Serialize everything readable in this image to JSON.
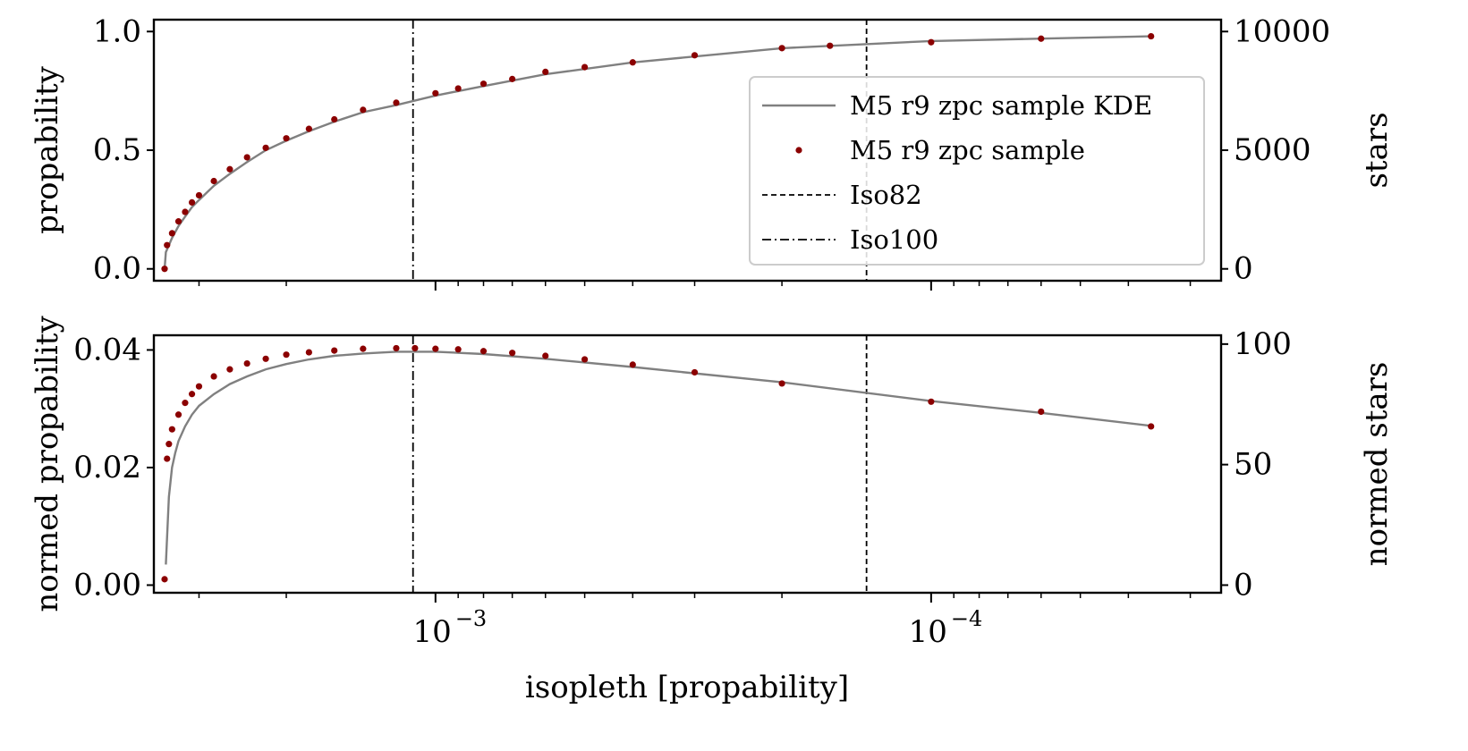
{
  "chart_data": [
    {
      "type": "line",
      "xlabel": "",
      "ylabel": "propability",
      "ylabel_right": "stars",
      "x_scale": "log, inverted",
      "xlim": [
        0.0037,
        2.6e-05
      ],
      "ylim": [
        -0.05,
        1.05
      ],
      "yticks": [
        "0.0",
        "0.5",
        "1.0"
      ],
      "yticks_right": [
        "0",
        "5000",
        "10000"
      ],
      "legend_position": "right",
      "legend": [
        {
          "label": "M5 r9 zpc sample KDE",
          "style": "solid line",
          "color": "#808080"
        },
        {
          "label": "M5 r9 zpc sample",
          "style": "dots",
          "color": "#8b0000"
        },
        {
          "label": "Iso82",
          "style": "dashed line",
          "color": "#000000"
        },
        {
          "label": "Iso100",
          "style": "dash-dot line",
          "color": "#000000"
        }
      ],
      "vlines": [
        {
          "name": "Iso100",
          "x": 0.00111,
          "style": "dashdot"
        },
        {
          "name": "Iso82",
          "x": 0.000135,
          "style": "dashed"
        }
      ],
      "series": [
        {
          "name": "M5 r9 zpc sample KDE",
          "x": [
            0.00352,
            0.0035,
            0.0034,
            0.0033,
            0.0032,
            0.0031,
            0.003,
            0.0028,
            0.0026,
            0.0024,
            0.0022,
            0.002,
            0.0018,
            0.0016,
            0.0014,
            0.0012,
            0.001,
            0.0008,
            0.0006,
            0.0004,
            0.0002,
            0.0001,
            6e-05,
            3.6e-05
          ],
          "y": [
            0.0,
            0.07,
            0.13,
            0.18,
            0.22,
            0.26,
            0.29,
            0.35,
            0.4,
            0.45,
            0.5,
            0.54,
            0.58,
            0.62,
            0.66,
            0.69,
            0.73,
            0.77,
            0.82,
            0.87,
            0.93,
            0.96,
            0.97,
            0.98
          ]
        },
        {
          "name": "M5 r9 zpc sample",
          "x": [
            0.00352,
            0.00348,
            0.0034,
            0.0033,
            0.0032,
            0.0031,
            0.003,
            0.0028,
            0.0026,
            0.0024,
            0.0022,
            0.002,
            0.0018,
            0.0016,
            0.0014,
            0.0012,
            0.001,
            0.0009,
            0.0008,
            0.0007,
            0.0006,
            0.0005,
            0.0004,
            0.0003,
            0.0002,
            0.00016,
            0.0001,
            6e-05,
            3.6e-05
          ],
          "y": [
            0.0,
            0.1,
            0.15,
            0.2,
            0.24,
            0.28,
            0.31,
            0.37,
            0.42,
            0.47,
            0.51,
            0.55,
            0.59,
            0.63,
            0.67,
            0.7,
            0.74,
            0.76,
            0.78,
            0.8,
            0.83,
            0.85,
            0.87,
            0.9,
            0.93,
            0.94,
            0.955,
            0.97,
            0.98
          ]
        }
      ]
    },
    {
      "type": "line",
      "xlabel": "isopleth [propability]",
      "ylabel": "normed propability",
      "ylabel_right": "normed stars",
      "x_scale": "log, inverted",
      "xlim": [
        0.0037,
        2.6e-05
      ],
      "ylim": [
        -0.0013,
        0.0425
      ],
      "xticks": [
        "10",
        "10"
      ],
      "xtick_exponents": [
        "−3",
        "−4"
      ],
      "yticks": [
        "0.00",
        "0.02",
        "0.04"
      ],
      "yticks_right": [
        "0",
        "50",
        "100"
      ],
      "vlines": [
        {
          "name": "Iso100",
          "x": 0.00111,
          "style": "dashdot"
        },
        {
          "name": "Iso82",
          "x": 0.000135,
          "style": "dashed"
        }
      ],
      "series": [
        {
          "name": "M5 r9 zpc sample KDE",
          "x": [
            0.0035,
            0.00345,
            0.0034,
            0.00335,
            0.0033,
            0.0032,
            0.0031,
            0.003,
            0.0028,
            0.0026,
            0.0024,
            0.0022,
            0.002,
            0.0018,
            0.0016,
            0.0014,
            0.0012,
            0.0011,
            0.001,
            0.0008,
            0.0006,
            0.0004,
            0.0002,
            0.0001,
            6e-05,
            3.6e-05
          ],
          "y": [
            0.0035,
            0.015,
            0.02,
            0.0225,
            0.0245,
            0.027,
            0.029,
            0.0305,
            0.0325,
            0.0342,
            0.0355,
            0.0367,
            0.0376,
            0.0384,
            0.039,
            0.0394,
            0.0397,
            0.0397,
            0.0397,
            0.0393,
            0.0385,
            0.0371,
            0.0345,
            0.0313,
            0.0293,
            0.0271
          ]
        },
        {
          "name": "M5 r9 zpc sample",
          "x": [
            0.00352,
            0.00348,
            0.00345,
            0.0034,
            0.0033,
            0.0032,
            0.0031,
            0.003,
            0.0028,
            0.0026,
            0.0024,
            0.0022,
            0.002,
            0.0018,
            0.0016,
            0.0014,
            0.0012,
            0.0011,
            0.001,
            0.0009,
            0.0008,
            0.0007,
            0.0006,
            0.0005,
            0.0004,
            0.0003,
            0.0002,
            0.0001,
            6e-05,
            3.6e-05
          ],
          "y": [
            0.001,
            0.0215,
            0.024,
            0.0265,
            0.029,
            0.031,
            0.0325,
            0.0338,
            0.0355,
            0.0367,
            0.0377,
            0.0385,
            0.0392,
            0.0396,
            0.0399,
            0.0402,
            0.0403,
            0.0403,
            0.0402,
            0.0401,
            0.0398,
            0.0395,
            0.039,
            0.0384,
            0.0375,
            0.0362,
            0.0343,
            0.0312,
            0.0295,
            0.027
          ]
        }
      ]
    }
  ]
}
